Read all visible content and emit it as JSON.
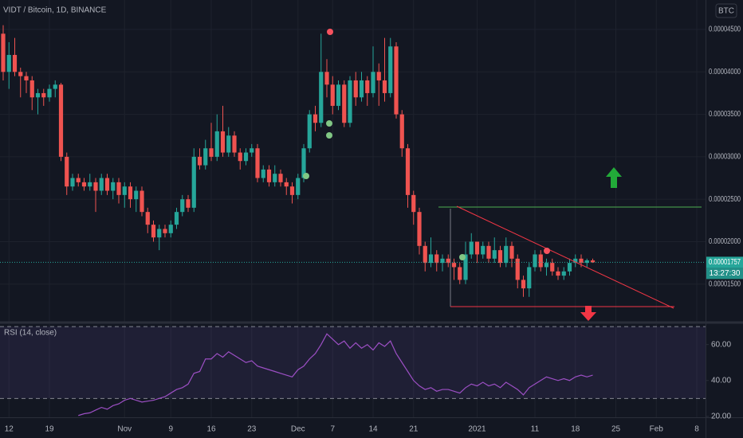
{
  "chart_data": [
    {
      "type": "candlestick",
      "title": "VIDT / Bitcoin, 1D, BINANCE",
      "currency": "BTC",
      "categories": [
        null,
        "12",
        null,
        null,
        null,
        null,
        null,
        null,
        "19",
        null,
        null,
        null,
        null,
        null,
        null,
        null,
        null,
        null,
        null,
        null,
        null,
        "Nov",
        null,
        null,
        null,
        null,
        null,
        null,
        null,
        "9",
        null,
        null,
        null,
        null,
        null,
        null,
        "16",
        null,
        null,
        null,
        null,
        null,
        null,
        "23",
        null,
        null,
        null,
        null,
        null,
        null,
        null,
        "Dec",
        null,
        null,
        null,
        null,
        null,
        "7",
        null,
        null,
        null,
        null,
        null,
        null,
        "14",
        null,
        null,
        null,
        null,
        null,
        null,
        "21",
        null,
        null,
        null,
        null,
        null,
        null,
        null,
        null,
        null,
        null,
        "2021",
        null,
        null,
        null,
        null,
        null,
        null,
        null,
        null,
        null,
        "11",
        null,
        null,
        null,
        null,
        null,
        null,
        "18",
        null,
        null,
        null,
        null,
        null,
        null,
        "25",
        null,
        null,
        null,
        null,
        null,
        null,
        "Feb",
        null,
        null,
        null,
        null,
        null,
        null,
        "8",
        null
      ],
      "open": [
        4.45e-05,
        4e-05,
        4.2e-05,
        4e-05,
        3.95e-05,
        3.9e-05,
        3.7e-05,
        3.75e-05,
        3.7e-05,
        3.8e-05,
        3.85e-05,
        3e-05,
        2.65e-05,
        2.75e-05,
        2.7e-05,
        2.65e-05,
        2.7e-05,
        2.6e-05,
        2.75e-05,
        2.6e-05,
        2.7e-05,
        2.55e-05,
        2.65e-05,
        2.5e-05,
        2.6e-05,
        2.35e-05,
        2.2e-05,
        2.05e-05,
        2.15e-05,
        2.1e-05,
        2.2e-05,
        2.35e-05,
        2.5e-05,
        2.4e-05,
        3e-05,
        2.9e-05,
        3.1e-05,
        3e-05,
        3.3e-05,
        3.05e-05,
        3.25e-05,
        3.05e-05,
        2.95e-05,
        3.05e-05,
        3.1e-05,
        2.75e-05,
        2.85e-05,
        2.7e-05,
        2.8e-05,
        2.7e-05,
        2.65e-05,
        2.55e-05,
        2.75e-05,
        3.1e-05,
        3.5e-05,
        3.4e-05,
        4e-05,
        3.85e-05,
        3.6e-05,
        3.85e-05,
        3.4e-05,
        3.9e-05,
        3.7e-05,
        3.9e-05,
        3.75e-05,
        4e-05,
        3.9e-05,
        3.75e-05,
        4.3e-05,
        3.5e-05,
        3.1e-05,
        2.55e-05,
        2.35e-05,
        1.95e-05,
        1.75e-05,
        1.85e-05,
        1.75e-05,
        1.8e-05,
        1.75e-05,
        1.7e-05,
        1.55e-05,
        1.85e-05,
        2e-05,
        1.85e-05,
        1.95e-05,
        1.8e-05,
        1.9e-05,
        1.75e-05,
        1.95e-05,
        1.8e-05,
        1.55e-05,
        1.45e-05,
        1.7e-05,
        1.85e-05,
        1.7e-05,
        1.75e-05,
        1.65e-05,
        1.6e-05,
        1.65e-05,
        1.75e-05,
        1.8e-05,
        1.75e-05,
        1.78e-05,
        null,
        null,
        null,
        null,
        null,
        null,
        null,
        null,
        null,
        null,
        null,
        null,
        null,
        null,
        null,
        null,
        null,
        null,
        null
      ],
      "high": [
        4.55e-05,
        4.35e-05,
        4.4e-05,
        4.05e-05,
        4e-05,
        3.95e-05,
        3.8e-05,
        3.8e-05,
        3.85e-05,
        3.9e-05,
        3.87e-05,
        3.05e-05,
        2.8e-05,
        2.8e-05,
        2.75e-05,
        2.8e-05,
        2.75e-05,
        2.8e-05,
        2.8e-05,
        2.75e-05,
        2.75e-05,
        2.7e-05,
        2.7e-05,
        2.65e-05,
        2.65e-05,
        2.4e-05,
        2.25e-05,
        2.2e-05,
        2.2e-05,
        2.25e-05,
        2.4e-05,
        2.55e-05,
        2.55e-05,
        3.1e-05,
        3.1e-05,
        3.2e-05,
        3.4e-05,
        3.5e-05,
        3.6e-05,
        3.35e-05,
        3.3e-05,
        3.1e-05,
        3.1e-05,
        3.15e-05,
        3.15e-05,
        2.9e-05,
        2.9e-05,
        2.9e-05,
        2.85e-05,
        2.75e-05,
        2.7e-05,
        2.8e-05,
        3.15e-05,
        3.55e-05,
        3.6e-05,
        4.45e-05,
        4.15e-05,
        3.95e-05,
        3.9e-05,
        3.9e-05,
        3.95e-05,
        4e-05,
        4e-05,
        3.95e-05,
        4.3e-05,
        4.1e-05,
        4.4e-05,
        4.4e-05,
        4.35e-05,
        3.55e-05,
        3.15e-05,
        2.6e-05,
        2.4e-05,
        2e-05,
        2.05e-05,
        1.9e-05,
        1.85e-05,
        1.85e-05,
        1.8e-05,
        1.75e-05,
        2e-05,
        2.1e-05,
        2e-05,
        2e-05,
        2e-05,
        2.05e-05,
        1.95e-05,
        2.05e-05,
        2e-05,
        1.85e-05,
        1.6e-05,
        1.75e-05,
        1.9e-05,
        1.9e-05,
        1.8e-05,
        1.8e-05,
        1.7e-05,
        1.7e-05,
        1.8e-05,
        1.85e-05,
        1.85e-05,
        1.8e-05,
        1.8e-05,
        null,
        null,
        null,
        null,
        null,
        null,
        null,
        null,
        null,
        null,
        null,
        null,
        null,
        null,
        null,
        null,
        null,
        null,
        null
      ],
      "low": [
        3.9e-05,
        3.8e-05,
        3.95e-05,
        3.7e-05,
        3.75e-05,
        3.55e-05,
        3.5e-05,
        3.6e-05,
        3.65e-05,
        3.7e-05,
        2.95e-05,
        2.55e-05,
        2.6e-05,
        2.65e-05,
        2.6e-05,
        2.6e-05,
        2.35e-05,
        2.55e-05,
        2.55e-05,
        2.5e-05,
        2.45e-05,
        2.4e-05,
        2.4e-05,
        2.35e-05,
        2.3e-05,
        2.1e-05,
        2e-05,
        1.9e-05,
        2.05e-05,
        2.05e-05,
        2.15e-05,
        2.3e-05,
        2.35e-05,
        2.35e-05,
        2.85e-05,
        2.85e-05,
        2.95e-05,
        2.95e-05,
        3e-05,
        3e-05,
        3e-05,
        2.85e-05,
        2.9e-05,
        3e-05,
        2.7e-05,
        2.7e-05,
        2.65e-05,
        2.65e-05,
        2.65e-05,
        2.55e-05,
        2.45e-05,
        2.5e-05,
        2.7e-05,
        3.05e-05,
        3.3e-05,
        3.35e-05,
        3.7e-05,
        3.5e-05,
        3.55e-05,
        3.35e-05,
        3.35e-05,
        3.6e-05,
        3.65e-05,
        3.6e-05,
        3.7e-05,
        3.6e-05,
        3.65e-05,
        3.7e-05,
        3.45e-05,
        3e-05,
        2.4e-05,
        2.2e-05,
        1.85e-05,
        1.65e-05,
        1.7e-05,
        1.65e-05,
        1.65e-05,
        1.7e-05,
        1.55e-05,
        1.5e-05,
        1.5e-05,
        1.8e-05,
        1.75e-05,
        1.8e-05,
        1.75e-05,
        1.75e-05,
        1.7e-05,
        1.7e-05,
        1.7e-05,
        1.45e-05,
        1.35e-05,
        1.35e-05,
        1.65e-05,
        1.65e-05,
        1.6e-05,
        1.6e-05,
        1.55e-05,
        1.55e-05,
        1.6e-05,
        1.7e-05,
        1.7e-05,
        1.7e-05,
        1.75e-05,
        null,
        null,
        null,
        null,
        null,
        null,
        null,
        null,
        null,
        null,
        null,
        null,
        null,
        null,
        null,
        null,
        null,
        null,
        null
      ],
      "close": [
        4e-05,
        4.2e-05,
        4e-05,
        3.95e-05,
        3.9e-05,
        3.7e-05,
        3.75e-05,
        3.7e-05,
        3.8e-05,
        3.85e-05,
        3e-05,
        2.65e-05,
        2.75e-05,
        2.7e-05,
        2.65e-05,
        2.7e-05,
        2.6e-05,
        2.75e-05,
        2.6e-05,
        2.7e-05,
        2.55e-05,
        2.65e-05,
        2.5e-05,
        2.6e-05,
        2.35e-05,
        2.2e-05,
        2.05e-05,
        2.15e-05,
        2.1e-05,
        2.2e-05,
        2.35e-05,
        2.5e-05,
        2.4e-05,
        3e-05,
        2.9e-05,
        3.1e-05,
        3e-05,
        3.3e-05,
        3.05e-05,
        3.25e-05,
        3.05e-05,
        2.95e-05,
        3.05e-05,
        3.1e-05,
        2.75e-05,
        2.85e-05,
        2.7e-05,
        2.8e-05,
        2.7e-05,
        2.65e-05,
        2.55e-05,
        2.75e-05,
        3.1e-05,
        3.5e-05,
        3.4e-05,
        4e-05,
        3.85e-05,
        3.6e-05,
        3.85e-05,
        3.4e-05,
        3.9e-05,
        3.7e-05,
        3.9e-05,
        3.75e-05,
        4e-05,
        3.9e-05,
        3.75e-05,
        4.3e-05,
        3.5e-05,
        3.1e-05,
        2.55e-05,
        2.35e-05,
        1.95e-05,
        1.75e-05,
        1.85e-05,
        1.75e-05,
        1.8e-05,
        1.75e-05,
        1.7e-05,
        1.55e-05,
        1.85e-05,
        2e-05,
        1.85e-05,
        1.95e-05,
        1.8e-05,
        1.9e-05,
        1.75e-05,
        1.95e-05,
        1.8e-05,
        1.55e-05,
        1.45e-05,
        1.7e-05,
        1.85e-05,
        1.7e-05,
        1.75e-05,
        1.65e-05,
        1.6e-05,
        1.65e-05,
        1.75e-05,
        1.8e-05,
        1.75e-05,
        1.78e-05,
        1.757e-05,
        null,
        null,
        null,
        null,
        null,
        null,
        null,
        null,
        null,
        null,
        null,
        null,
        null,
        null,
        null,
        null,
        null,
        null,
        null
      ],
      "up_color": "#26a69a",
      "down_color": "#ef5350",
      "ylim": [
        1.057e-05,
        4.847e-05
      ],
      "yticks": [
        {
          "value": 1.5e-05,
          "label": "0.00001500"
        },
        {
          "value": 2e-05,
          "label": "0.00002000"
        },
        {
          "value": 2.5e-05,
          "label": "0.00002500"
        },
        {
          "value": 3e-05,
          "label": "0.00003000"
        },
        {
          "value": 3.5e-05,
          "label": "0.00003500"
        },
        {
          "value": 4e-05,
          "label": "0.00004000"
        },
        {
          "value": 4.5e-05,
          "label": "0.00004500"
        }
      ],
      "last_price": {
        "value": 1.757e-05,
        "label": "0.00001757"
      },
      "countdown": "13:27:30",
      "grid": true
    },
    {
      "type": "line",
      "title": "RSI (14, close)",
      "values": [
        null,
        null,
        null,
        null,
        null,
        null,
        null,
        null,
        null,
        null,
        null,
        null,
        null,
        20.5,
        21.5,
        22,
        23.5,
        25,
        24,
        26,
        27,
        29,
        30,
        29,
        28,
        28.5,
        29,
        30,
        31,
        33,
        35,
        36,
        38,
        44,
        45,
        52,
        52,
        55,
        53,
        56,
        54,
        52,
        50,
        51,
        48,
        47,
        46,
        45,
        44,
        43,
        42,
        46,
        48,
        52,
        55,
        60,
        66,
        63,
        60,
        62,
        58,
        61,
        58,
        60,
        57,
        61,
        59,
        62,
        55,
        50,
        45,
        40,
        37,
        35,
        36,
        34,
        35,
        35,
        34,
        33,
        36,
        38,
        37,
        39,
        37,
        38,
        36,
        39,
        37,
        35,
        32,
        36,
        38,
        40,
        42,
        41,
        40,
        41,
        40,
        42,
        43,
        42,
        43,
        null,
        null,
        null,
        null,
        null,
        null,
        null,
        null,
        null,
        null,
        null,
        null,
        null,
        null,
        null,
        null,
        null,
        null,
        null
      ],
      "color": "#9c4fc4",
      "ylim": [
        19.5,
        71.4
      ],
      "yticks": [
        {
          "value": 20,
          "label": "20.00"
        },
        {
          "value": 40,
          "label": "40.00"
        },
        {
          "value": 60,
          "label": "60.00"
        }
      ],
      "bands": [
        30,
        70
      ],
      "band_color": "#7e57c2"
    }
  ]
}
